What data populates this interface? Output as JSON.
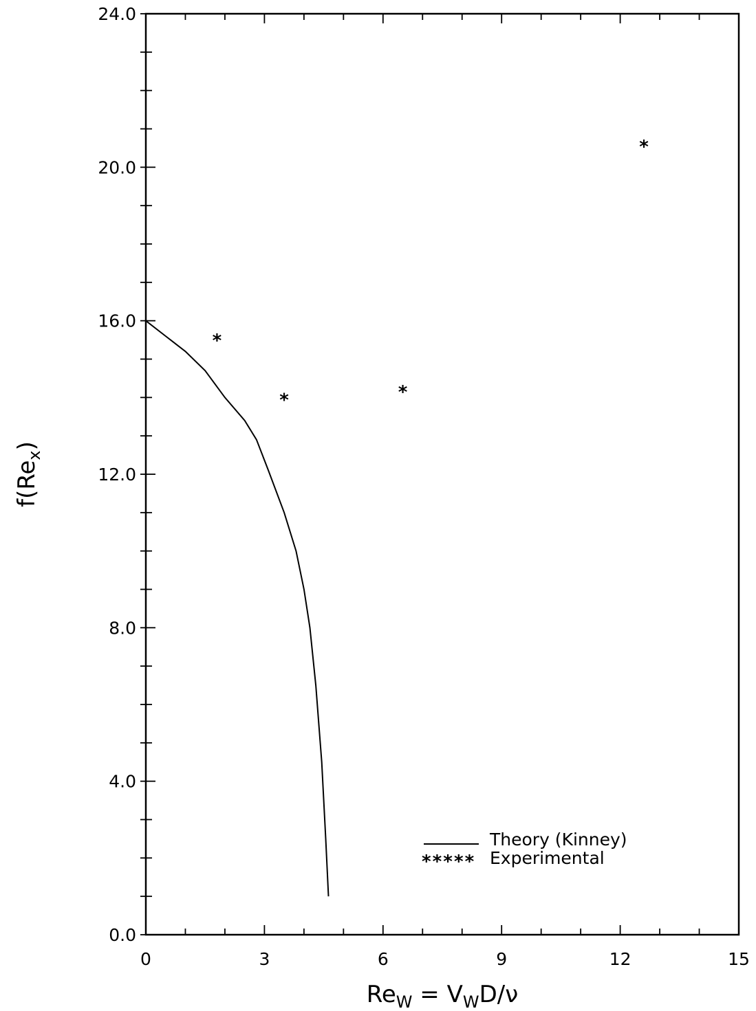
{
  "chart_data": {
    "type": "line",
    "title": "",
    "xlabel": {
      "base": "Re",
      "sub": "W",
      "rest": " = V",
      "sub2": "W",
      "rest2": "D/ν"
    },
    "ylabel": {
      "base": "f(Re",
      "sub": "x",
      "close": ")"
    },
    "xlim": [
      0,
      15
    ],
    "ylim": [
      0,
      24
    ],
    "x_ticks": [
      "0",
      "3",
      "6",
      "9",
      "12",
      "15"
    ],
    "y_ticks": [
      "0.0",
      "4.0",
      "8.0",
      "12.0",
      "16.0",
      "20.0",
      "24.0"
    ],
    "grid": false,
    "legend_position": "bottom-right",
    "series": [
      {
        "name": "Theory (Kinney)",
        "style": "line",
        "x": [
          0.0,
          0.5,
          1.0,
          1.5,
          2.0,
          2.5,
          2.8,
          3.1,
          3.5,
          3.8,
          4.0,
          4.15,
          4.3,
          4.45,
          4.55,
          4.62
        ],
        "y": [
          16.0,
          15.6,
          15.2,
          14.7,
          14.0,
          13.4,
          12.9,
          12.1,
          11.0,
          10.0,
          9.0,
          8.0,
          6.5,
          4.5,
          2.5,
          1.0
        ]
      },
      {
        "name": "Experimental",
        "legend_symbol": "*****",
        "style": "marker",
        "x": [
          1.8,
          3.5,
          6.5,
          12.6
        ],
        "y": [
          15.55,
          14.0,
          14.2,
          20.6
        ]
      }
    ]
  }
}
